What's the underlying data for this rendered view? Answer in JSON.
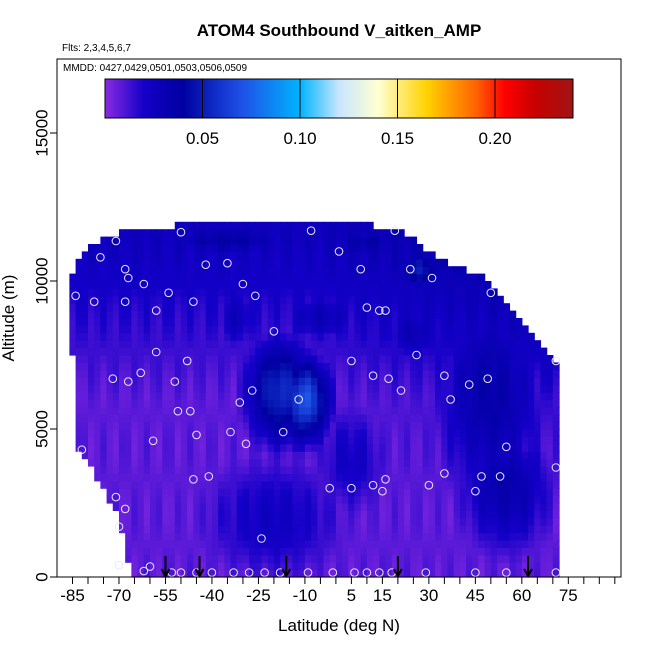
{
  "chart_data": {
    "type": "heatmap",
    "title": "ATOM4 Southbound V_aitken_AMP",
    "flights_note": "Flts: 2,3,4,5,6,7",
    "dates_note": "MMDD: 0427,0429,0501,0503,0506,0509",
    "xlabel": "Latitude (deg N)",
    "ylabel": "Altitude (m)",
    "xlim": [
      -90,
      92
    ],
    "ylim": [
      0,
      17500
    ],
    "x_ticks": [
      -85,
      -70,
      -55,
      -40,
      -25,
      -10,
      5,
      15,
      30,
      45,
      60,
      75
    ],
    "x_minor_step": 5,
    "y_ticks": [
      0,
      5000,
      10000,
      15000
    ],
    "colorbar": {
      "range": [
        0,
        0.24
      ],
      "ticks": [
        0.05,
        0.1,
        0.15,
        0.2
      ],
      "tick_labels": [
        "0.05",
        "0.10",
        "0.15",
        "0.20"
      ],
      "colors": [
        "#8a2be2",
        "#1400c8",
        "#0000a0",
        "#1e50e6",
        "#00b4ff",
        "#c8e6ff",
        "#ffffd2",
        "#ffd200",
        "#ff6400",
        "#ff0000",
        "#c80000",
        "#a01414"
      ],
      "stops": [
        0,
        0.02,
        0.04,
        0.07,
        0.1,
        0.12,
        0.14,
        0.165,
        0.19,
        0.205,
        0.22,
        0.24
      ]
    },
    "domain_outline": [
      [
        -86,
        9800
      ],
      [
        -84,
        10500
      ],
      [
        -79,
        11200
      ],
      [
        -72,
        11600
      ],
      [
        -60,
        11800
      ],
      [
        -50,
        11900
      ],
      [
        -35,
        11900
      ],
      [
        -15,
        11900
      ],
      [
        10,
        11900
      ],
      [
        20,
        11800
      ],
      [
        28,
        11200
      ],
      [
        34,
        10700
      ],
      [
        45,
        10300
      ],
      [
        52,
        9700
      ],
      [
        57,
        9000
      ],
      [
        62,
        8300
      ],
      [
        68,
        7600
      ],
      [
        72,
        7000
      ],
      [
        72,
        0
      ],
      [
        -66,
        0
      ],
      [
        -70,
        2000
      ],
      [
        -74,
        2700
      ],
      [
        -77,
        3300
      ],
      [
        -80,
        3800
      ],
      [
        -83,
        4300
      ],
      [
        -84,
        5200
      ],
      [
        -85,
        7500
      ],
      [
        -86,
        9300
      ]
    ],
    "background_value": 0.008,
    "blobs": [
      {
        "lat": -18,
        "alt": 6300,
        "dlat": 11,
        "dalt": 1800,
        "value": 0.055
      },
      {
        "lat": -10,
        "alt": 6000,
        "dlat": 8,
        "dalt": 1400,
        "value": 0.07
      },
      {
        "lat": 27,
        "alt": 10400,
        "dlat": 7,
        "dalt": 700,
        "value": 0.05
      },
      {
        "lat": 38,
        "alt": 10700,
        "dlat": 9,
        "dalt": 700,
        "value": 0.04
      },
      {
        "lat": -35,
        "alt": 11400,
        "dlat": 25,
        "dalt": 600,
        "value": 0.038
      },
      {
        "lat": 10,
        "alt": 11300,
        "dlat": 15,
        "dalt": 650,
        "value": 0.036
      },
      {
        "lat": 50,
        "alt": 6200,
        "dlat": 18,
        "dalt": 3800,
        "value": 0.035
      },
      {
        "lat": 55,
        "alt": 3000,
        "dlat": 15,
        "dalt": 2200,
        "value": 0.034
      },
      {
        "lat": -5,
        "alt": 8800,
        "dlat": 14,
        "dalt": 900,
        "value": 0.03
      },
      {
        "lat": 25,
        "alt": 8300,
        "dlat": 10,
        "dalt": 1100,
        "value": 0.03
      },
      {
        "lat": -32,
        "alt": 8800,
        "dlat": 8,
        "dalt": 1200,
        "value": 0.027
      },
      {
        "lat": -20,
        "alt": 2000,
        "dlat": 25,
        "dalt": 2200,
        "value": 0.024
      },
      {
        "lat": 5,
        "alt": 4000,
        "dlat": 12,
        "dalt": 2000,
        "value": 0.023
      }
    ],
    "observations": [
      {
        "lat": -84,
        "alt": 9500
      },
      {
        "lat": -78,
        "alt": 9300
      },
      {
        "lat": -76,
        "alt": 10800
      },
      {
        "lat": -71,
        "alt": 11350
      },
      {
        "lat": -68,
        "alt": 10400
      },
      {
        "lat": -67,
        "alt": 10100
      },
      {
        "lat": -62,
        "alt": 9900
      },
      {
        "lat": -68,
        "alt": 9300
      },
      {
        "lat": -58,
        "alt": 9000
      },
      {
        "lat": -54,
        "alt": 9600
      },
      {
        "lat": -50,
        "alt": 11650
      },
      {
        "lat": -42,
        "alt": 10550
      },
      {
        "lat": -35,
        "alt": 10600
      },
      {
        "lat": -30,
        "alt": 9900
      },
      {
        "lat": -26,
        "alt": 9500
      },
      {
        "lat": -20,
        "alt": 8300
      },
      {
        "lat": -46,
        "alt": 9300
      },
      {
        "lat": -58,
        "alt": 7600
      },
      {
        "lat": -72,
        "alt": 6700
      },
      {
        "lat": -67,
        "alt": 6600
      },
      {
        "lat": -63,
        "alt": 6900
      },
      {
        "lat": -52,
        "alt": 6600
      },
      {
        "lat": -48,
        "alt": 7300
      },
      {
        "lat": -27,
        "alt": 6300
      },
      {
        "lat": -51,
        "alt": 5600
      },
      {
        "lat": -47,
        "alt": 5600
      },
      {
        "lat": -45,
        "alt": 4800
      },
      {
        "lat": -34,
        "alt": 4900
      },
      {
        "lat": -31,
        "alt": 5900
      },
      {
        "lat": -29,
        "alt": 4500
      },
      {
        "lat": -17,
        "alt": 4900
      },
      {
        "lat": -59,
        "alt": 4600
      },
      {
        "lat": -82,
        "alt": 4300
      },
      {
        "lat": -46,
        "alt": 3300
      },
      {
        "lat": -41,
        "alt": 3400
      },
      {
        "lat": -12,
        "alt": 6000
      },
      {
        "lat": -8,
        "alt": 11700
      },
      {
        "lat": 1,
        "alt": 11000
      },
      {
        "lat": 8,
        "alt": 10400
      },
      {
        "lat": 19,
        "alt": 11700
      },
      {
        "lat": 24,
        "alt": 10400
      },
      {
        "lat": 31,
        "alt": 10100
      },
      {
        "lat": 50,
        "alt": 9600
      },
      {
        "lat": 10,
        "alt": 9100
      },
      {
        "lat": 14,
        "alt": 9000
      },
      {
        "lat": 16,
        "alt": 9000
      },
      {
        "lat": 5,
        "alt": 7300
      },
      {
        "lat": 12,
        "alt": 6800
      },
      {
        "lat": 17,
        "alt": 6700
      },
      {
        "lat": 21,
        "alt": 6300
      },
      {
        "lat": 26,
        "alt": 7500
      },
      {
        "lat": 35,
        "alt": 6800
      },
      {
        "lat": 37,
        "alt": 6000
      },
      {
        "lat": 43,
        "alt": 6500
      },
      {
        "lat": 49,
        "alt": 6700
      },
      {
        "lat": 71,
        "alt": 7300
      },
      {
        "lat": 55,
        "alt": 4400
      },
      {
        "lat": 35,
        "alt": 3500
      },
      {
        "lat": 30,
        "alt": 3100
      },
      {
        "lat": 45,
        "alt": 2900
      },
      {
        "lat": 47,
        "alt": 3400
      },
      {
        "lat": 53,
        "alt": 3400
      },
      {
        "lat": 71,
        "alt": 3700
      },
      {
        "lat": 16,
        "alt": 3300
      },
      {
        "lat": 15,
        "alt": 2900
      },
      {
        "lat": 12,
        "alt": 3100
      },
      {
        "lat": 5,
        "alt": 3000
      },
      {
        "lat": -2,
        "alt": 3000
      },
      {
        "lat": -71,
        "alt": 2700
      },
      {
        "lat": -68,
        "alt": 2300
      },
      {
        "lat": -70,
        "alt": 1700
      },
      {
        "lat": -24,
        "alt": 1300
      },
      {
        "lat": -70,
        "alt": 400
      },
      {
        "lat": -62,
        "alt": 200
      },
      {
        "lat": -60,
        "alt": 350
      },
      {
        "lat": -53,
        "alt": 150
      },
      {
        "lat": -50,
        "alt": 150
      },
      {
        "lat": -45,
        "alt": 150
      },
      {
        "lat": -40,
        "alt": 150
      },
      {
        "lat": -33,
        "alt": 150
      },
      {
        "lat": -28,
        "alt": 150
      },
      {
        "lat": -23,
        "alt": 150
      },
      {
        "lat": -18,
        "alt": 150
      },
      {
        "lat": -9,
        "alt": 150
      },
      {
        "lat": -1,
        "alt": 150
      },
      {
        "lat": 6,
        "alt": 150
      },
      {
        "lat": 10,
        "alt": 150
      },
      {
        "lat": 14,
        "alt": 150
      },
      {
        "lat": 18,
        "alt": 150
      },
      {
        "lat": 29,
        "alt": 150
      },
      {
        "lat": 45,
        "alt": 150
      },
      {
        "lat": 55,
        "alt": 150
      },
      {
        "lat": 71,
        "alt": 150
      }
    ],
    "arrow_latitudes": [
      -55,
      -44,
      -16,
      20,
      62
    ]
  }
}
